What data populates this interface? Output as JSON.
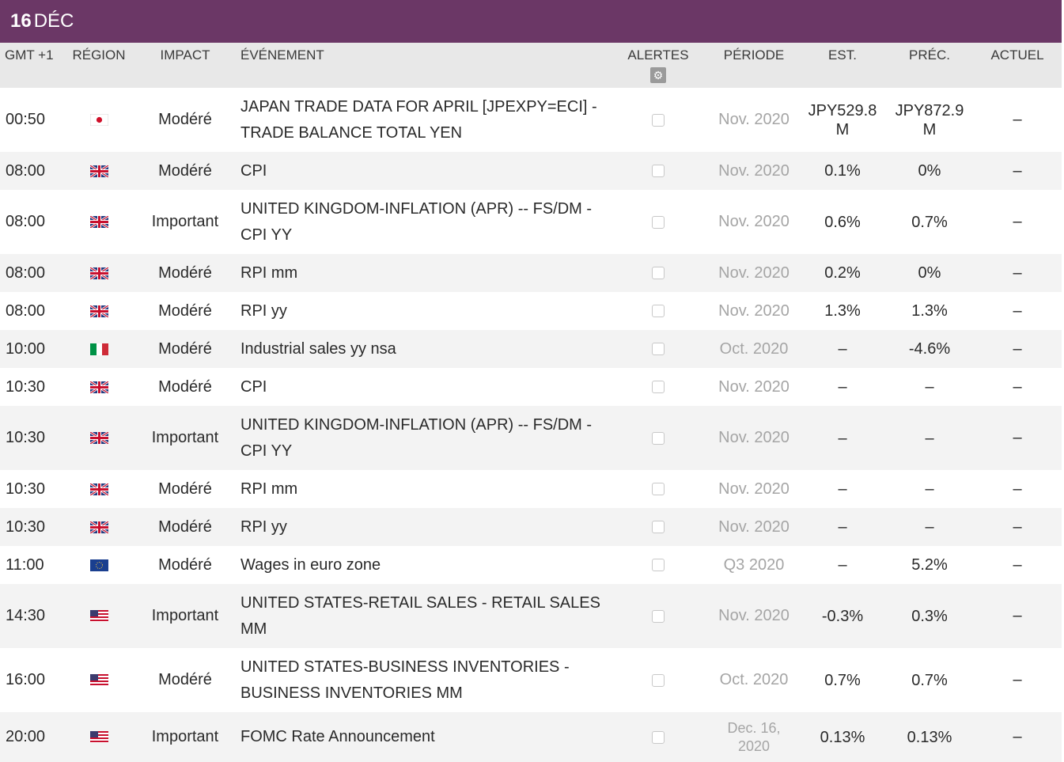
{
  "date": {
    "day": "16",
    "month": "DÉC"
  },
  "headers": {
    "time": "GMT +1",
    "region": "RÉGION",
    "impact": "IMPACT",
    "event": "ÉVÉNEMENT",
    "alerts": "ALERTES",
    "period": "PÉRIODE",
    "est": "EST.",
    "prec": "PRÉC.",
    "actual": "ACTUEL"
  },
  "icons": {
    "alerts_settings": "gear-icon",
    "alert_toggle": "checkbox-icon"
  },
  "colors": {
    "header_bar": "#6b3766",
    "column_header_bg": "#e8e8e8",
    "alt_row_bg": "#f3f3f3",
    "period_text": "#a5a5a5"
  },
  "rows": [
    {
      "time": "00:50",
      "region": "japan",
      "impact": "Modéré",
      "event": "JAPAN TRADE DATA FOR APRIL [JPEXPY=ECI] - TRADE BALANCE TOTAL YEN",
      "period": "Nov. 2020",
      "est": "JPY529.8\nM",
      "prec": "JPY872.9\nM",
      "actual": "–"
    },
    {
      "time": "08:00",
      "region": "uk",
      "impact": "Modéré",
      "event": "CPI",
      "period": "Nov. 2020",
      "est": "0.1%",
      "prec": "0%",
      "actual": "–"
    },
    {
      "time": "08:00",
      "region": "uk",
      "impact": "Important",
      "event": "UNITED KINGDOM-INFLATION (APR) -- FS/DM - CPI YY",
      "period": "Nov. 2020",
      "est": "0.6%",
      "prec": "0.7%",
      "actual": "–"
    },
    {
      "time": "08:00",
      "region": "uk",
      "impact": "Modéré",
      "event": "RPI mm",
      "period": "Nov. 2020",
      "est": "0.2%",
      "prec": "0%",
      "actual": "–"
    },
    {
      "time": "08:00",
      "region": "uk",
      "impact": "Modéré",
      "event": "RPI yy",
      "period": "Nov. 2020",
      "est": "1.3%",
      "prec": "1.3%",
      "actual": "–"
    },
    {
      "time": "10:00",
      "region": "italy",
      "impact": "Modéré",
      "event": "Industrial sales yy nsa",
      "period": "Oct. 2020",
      "est": "–",
      "prec": "-4.6%",
      "actual": "–"
    },
    {
      "time": "10:30",
      "region": "uk",
      "impact": "Modéré",
      "event": "CPI",
      "period": "Nov. 2020",
      "est": "–",
      "prec": "–",
      "actual": "–"
    },
    {
      "time": "10:30",
      "region": "uk",
      "impact": "Important",
      "event": "UNITED KINGDOM-INFLATION (APR) -- FS/DM - CPI YY",
      "period": "Nov. 2020",
      "est": "–",
      "prec": "–",
      "actual": "–"
    },
    {
      "time": "10:30",
      "region": "uk",
      "impact": "Modéré",
      "event": "RPI mm",
      "period": "Nov. 2020",
      "est": "–",
      "prec": "–",
      "actual": "–"
    },
    {
      "time": "10:30",
      "region": "uk",
      "impact": "Modéré",
      "event": "RPI yy",
      "period": "Nov. 2020",
      "est": "–",
      "prec": "–",
      "actual": "–"
    },
    {
      "time": "11:00",
      "region": "eu",
      "impact": "Modéré",
      "event": "Wages in euro zone",
      "period": "Q3 2020",
      "est": "–",
      "prec": "5.2%",
      "actual": "–"
    },
    {
      "time": "14:30",
      "region": "us",
      "impact": "Important",
      "event": "UNITED STATES-RETAIL SALES - RETAIL SALES MM",
      "period": "Nov. 2020",
      "est": "-0.3%",
      "prec": "0.3%",
      "actual": "–"
    },
    {
      "time": "16:00",
      "region": "us",
      "impact": "Modéré",
      "event": "UNITED STATES-BUSINESS INVENTORIES - BUSINESS INVENTORIES MM",
      "period": "Oct. 2020",
      "est": "0.7%",
      "prec": "0.7%",
      "actual": "–"
    },
    {
      "time": "20:00",
      "region": "us",
      "impact": "Important",
      "event": "FOMC Rate Announcement",
      "period": "Dec. 16,\n2020",
      "est": "0.13%",
      "prec": "0.13%",
      "actual": "–"
    }
  ]
}
